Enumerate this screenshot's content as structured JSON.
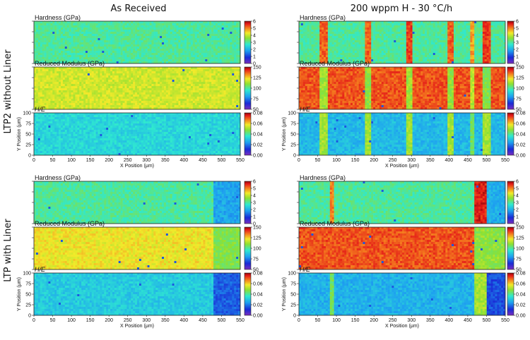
{
  "column_titles": [
    "As Received",
    "200 wppm H - 30 °C/h"
  ],
  "row_titles": [
    "LTP2 without Liner",
    "LTP with Liner"
  ],
  "chart_data": [
    {
      "type": "heatmap",
      "panel": "LTP2 without Liner / As Received / Hardness",
      "title": "Hardness (GPa)",
      "colorbar": {
        "min": 0,
        "max": 6,
        "ticks": [
          "0",
          "1",
          "2",
          "3",
          "4",
          "5",
          "6"
        ]
      },
      "xlim": [
        0,
        550
      ],
      "ylim": [
        0,
        100
      ],
      "base": 3.0,
      "features": []
    },
    {
      "type": "heatmap",
      "panel": "LTP2 without Liner / As Received / Reduced Modulus",
      "title": "Reduced Modulus (GPa)",
      "colorbar": {
        "min": 50,
        "max": 150,
        "ticks": [
          "50",
          "75",
          "100",
          "125",
          "150"
        ]
      },
      "xlim": [
        0,
        550
      ],
      "ylim": [
        0,
        100
      ],
      "base": 118,
      "features": []
    },
    {
      "type": "heatmap",
      "panel": "LTP2 without Liner / As Received / H/E",
      "title": "H/E",
      "colorbar": {
        "min": 0,
        "max": 0.08,
        "ticks": [
          "0.00",
          "0.02",
          "0.04",
          "0.06",
          "0.08"
        ]
      },
      "xlim": [
        0,
        550
      ],
      "ylim": [
        0,
        100
      ],
      "base": 0.033,
      "xlabel": "X Position (μm)",
      "ylabel": "Y Position (μm)",
      "xticks": [
        "0",
        "50",
        "100",
        "150",
        "200",
        "250",
        "300",
        "350",
        "400",
        "450",
        "500",
        "550"
      ],
      "yticks": [
        "0",
        "25",
        "50",
        "75",
        "100"
      ],
      "features": []
    },
    {
      "type": "heatmap",
      "panel": "LTP2 without Liner / 200 wppm H / Hardness",
      "title": "Hardness (GPa)",
      "colorbar": {
        "min": 0,
        "max": 6,
        "ticks": [
          "0",
          "1",
          "2",
          "3",
          "4",
          "5",
          "6"
        ]
      },
      "xlim": [
        0,
        550
      ],
      "ylim": [
        0,
        100
      ],
      "base": 3.0,
      "features": [
        {
          "x": [
            55,
            75
          ],
          "v": 5.2
        },
        {
          "x": [
            175,
            195
          ],
          "v": 5.2
        },
        {
          "x": [
            285,
            300
          ],
          "v": 5.4
        },
        {
          "x": [
            395,
            415
          ],
          "v": 5.2
        },
        {
          "x": [
            455,
            470
          ],
          "v": 4.8
        },
        {
          "x": [
            490,
            510
          ],
          "v": 5.4
        }
      ]
    },
    {
      "type": "heatmap",
      "panel": "LTP2 without Liner / 200 wppm H / Reduced Modulus",
      "title": "Reduced Modulus (GPa)",
      "colorbar": {
        "min": 50,
        "max": 150,
        "ticks": [
          "50",
          "75",
          "100",
          "125",
          "150"
        ]
      },
      "xlim": [
        0,
        550
      ],
      "ylim": [
        0,
        100
      ],
      "base": 138,
      "features": [
        {
          "x": [
            55,
            75
          ],
          "v": 112
        },
        {
          "x": [
            175,
            195
          ],
          "v": 110
        },
        {
          "x": [
            285,
            300
          ],
          "v": 112
        },
        {
          "x": [
            395,
            415
          ],
          "v": 110
        },
        {
          "x": [
            455,
            470
          ],
          "v": 115
        },
        {
          "x": [
            490,
            510
          ],
          "v": 108
        }
      ]
    },
    {
      "type": "heatmap",
      "panel": "LTP2 without Liner / 200 wppm H / H/E",
      "title": "H/E",
      "colorbar": {
        "min": 0,
        "max": 0.08,
        "ticks": [
          "0.00",
          "0.02",
          "0.04",
          "0.06",
          "0.08"
        ]
      },
      "xlim": [
        0,
        550
      ],
      "ylim": [
        0,
        100
      ],
      "base": 0.028,
      "xlabel": "X Position (μm)",
      "ylabel": "Y Position (μm)",
      "xticks": [
        "0",
        "50",
        "100",
        "150",
        "200",
        "250",
        "300",
        "350",
        "400",
        "450",
        "500",
        "550"
      ],
      "yticks": [
        "0",
        "25",
        "50",
        "75",
        "100"
      ],
      "features": [
        {
          "x": [
            55,
            75
          ],
          "v": 0.05
        },
        {
          "x": [
            175,
            195
          ],
          "v": 0.05
        },
        {
          "x": [
            285,
            300
          ],
          "v": 0.05
        },
        {
          "x": [
            395,
            415
          ],
          "v": 0.05
        },
        {
          "x": [
            455,
            470
          ],
          "v": 0.045
        },
        {
          "x": [
            490,
            510
          ],
          "v": 0.05
        }
      ]
    },
    {
      "type": "heatmap",
      "panel": "LTP with Liner / As Received / Hardness",
      "title": "Hardness (GPa)",
      "colorbar": {
        "min": 0,
        "max": 6,
        "ticks": [
          "0",
          "1",
          "2",
          "3",
          "4",
          "5",
          "6"
        ]
      },
      "xlim": [
        0,
        550
      ],
      "ylim": [
        0,
        100
      ],
      "base": 3.0,
      "features": [
        {
          "x": [
            478,
            550
          ],
          "v": 1.9
        }
      ]
    },
    {
      "type": "heatmap",
      "panel": "LTP with Liner / As Received / Reduced Modulus",
      "title": "Reduced Modulus (GPa)",
      "colorbar": {
        "min": 50,
        "max": 150,
        "ticks": [
          "50",
          "75",
          "100",
          "125",
          "150"
        ]
      },
      "xlim": [
        0,
        550
      ],
      "ylim": [
        0,
        100
      ],
      "base": 122,
      "features": [
        {
          "x": [
            478,
            550
          ],
          "v": 108
        }
      ]
    },
    {
      "type": "heatmap",
      "panel": "LTP with Liner / As Received / H/E",
      "title": "H/E",
      "colorbar": {
        "min": 0,
        "max": 0.08,
        "ticks": [
          "0.00",
          "0.02",
          "0.04",
          "0.06",
          "0.08"
        ]
      },
      "xlim": [
        0,
        550
      ],
      "ylim": [
        0,
        100
      ],
      "base": 0.031,
      "xlabel": "X Position (μm)",
      "ylabel": "Y Position (μm)",
      "xticks": [
        "0",
        "50",
        "100",
        "150",
        "200",
        "250",
        "300",
        "350",
        "400",
        "450",
        "500",
        "550"
      ],
      "yticks": [
        "0",
        "25",
        "50",
        "75",
        "100"
      ],
      "features": [
        {
          "x": [
            478,
            550
          ],
          "v": 0.017
        }
      ]
    },
    {
      "type": "heatmap",
      "panel": "LTP with Liner / 200 wppm H / Hardness",
      "title": "Hardness (GPa)",
      "colorbar": {
        "min": 0,
        "max": 6,
        "ticks": [
          "0",
          "1",
          "2",
          "3",
          "4",
          "5",
          "6"
        ]
      },
      "xlim": [
        0,
        550
      ],
      "ylim": [
        0,
        100
      ],
      "base": 3.0,
      "features": [
        {
          "x": [
            80,
            95
          ],
          "v": 5.0
        },
        {
          "x": [
            470,
            500
          ],
          "v": 5.6
        },
        {
          "x": [
            500,
            550
          ],
          "v": 2.0
        }
      ]
    },
    {
      "type": "heatmap",
      "panel": "LTP with Liner / 200 wppm H / Reduced Modulus",
      "title": "Reduced Modulus (GPa)",
      "colorbar": {
        "min": 50,
        "max": 150,
        "ticks": [
          "50",
          "75",
          "100",
          "125",
          "150"
        ]
      },
      "xlim": [
        0,
        550
      ],
      "ylim": [
        0,
        100
      ],
      "base": 138,
      "features": [
        {
          "x": [
            470,
            550
          ],
          "v": 110
        }
      ]
    },
    {
      "type": "heatmap",
      "panel": "LTP with Liner / 200 wppm H / H/E",
      "title": "H/E",
      "colorbar": {
        "min": 0,
        "max": 0.08,
        "ticks": [
          "0.00",
          "0.02",
          "0.04",
          "0.06",
          "0.08"
        ]
      },
      "xlim": [
        0,
        550
      ],
      "ylim": [
        0,
        100
      ],
      "base": 0.027,
      "xlabel": "X Position (μm)",
      "ylabel": "Y Position (μm)",
      "xticks": [
        "0",
        "50",
        "100",
        "150",
        "200",
        "250",
        "300",
        "350",
        "400",
        "450",
        "500",
        "550"
      ],
      "yticks": [
        "0",
        "25",
        "50",
        "75",
        "100"
      ],
      "features": [
        {
          "x": [
            80,
            95
          ],
          "v": 0.045
        },
        {
          "x": [
            470,
            500
          ],
          "v": 0.05
        },
        {
          "x": [
            500,
            550
          ],
          "v": 0.015
        }
      ]
    }
  ]
}
